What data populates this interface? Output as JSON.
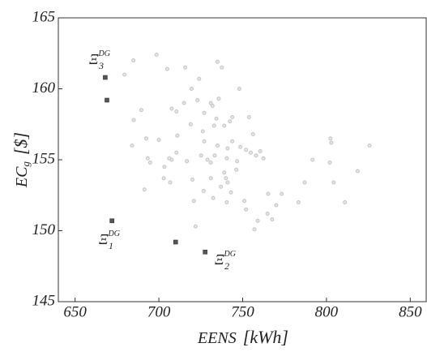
{
  "chart_data": {
    "type": "scatter",
    "xlabel": {
      "text": "EENS",
      "unit": "[kWh]"
    },
    "ylabel": {
      "text": "EC",
      "sub": "g",
      "unit": "[$]"
    },
    "xlim": [
      640,
      860
    ],
    "xticks": [
      650,
      700,
      750,
      800,
      850
    ],
    "ylim": [
      145,
      165
    ],
    "yticks": [
      145,
      150,
      155,
      160,
      165
    ],
    "series": [
      {
        "color": "#c4c4c4",
        "marker": "circle",
        "x": [
          684.8,
          679.5,
          698.6,
          705,
          715.7,
          724,
          735,
          737.6,
          748,
          719.5,
          685,
          689.5,
          707.6,
          710.5,
          715,
          723,
          731,
          732,
          735.7,
          727.1,
          734.3,
          742.4,
          733,
          739,
          743.8,
          753.8,
          756.2,
          684,
          692.4,
          700,
          711,
          719,
          727.1,
          735,
          743.8,
          748.6,
          752,
          754.8,
          760.5,
          762.4,
          710.5,
          716.7,
          725.2,
          731,
          740.5,
          746.2,
          693.3,
          694.8,
          703.3,
          707.6,
          706.2,
          739,
          740,
          741,
          737,
          731,
          720,
          726.7,
          743,
          740.5,
          732.4,
          720.9,
          751,
          765.2,
          773.3,
          770,
          764.8,
          767.6,
          759,
          757,
          783.3,
          787,
          791.7,
          802.4,
          802.9,
          802,
          804.3,
          811,
          818.6,
          825.7,
          721.9,
          691.4,
          746.7,
          758,
          733.3,
          726.2,
          729,
          741,
          702.9,
          706.7,
          752
        ],
        "values": [
          162,
          161,
          162.4,
          161.4,
          161.5,
          160.7,
          161.9,
          161.5,
          160,
          160,
          157.8,
          158.5,
          158.6,
          158.4,
          159,
          159.2,
          159,
          158.8,
          159.3,
          158.3,
          157.9,
          157.7,
          157.4,
          157.4,
          158,
          158,
          156.8,
          156,
          156.5,
          156.4,
          156.7,
          157.5,
          156.3,
          156,
          156.3,
          155.9,
          155.7,
          155.5,
          155.6,
          155.1,
          155.5,
          154.9,
          155.3,
          154.8,
          155.1,
          154.3,
          155.1,
          154.8,
          154.5,
          155,
          155.1,
          154.1,
          153.7,
          153.4,
          153.1,
          153.7,
          153.6,
          152.8,
          152.7,
          152,
          152.3,
          152.1,
          152.1,
          152.6,
          152.6,
          151.8,
          151.2,
          150.8,
          150.7,
          150.1,
          152,
          153.4,
          155,
          156.5,
          156.2,
          154.8,
          153.4,
          152,
          154.2,
          156,
          150.3,
          152.9,
          154.9,
          155.3,
          155.3,
          157,
          155,
          155.8,
          153.7,
          153.4,
          151.5
        ]
      },
      {
        "color": "#555555",
        "marker": "square",
        "x": [
          668,
          669,
          672,
          710,
          727.6
        ],
        "values": [
          160.8,
          159.2,
          150.7,
          149.2,
          148.5
        ]
      }
    ],
    "annotations": [
      {
        "base": "Ξ",
        "sub": "3",
        "sup": "DG"
      },
      {
        "base": "Ξ",
        "sub": "1",
        "sup": "DG"
      },
      {
        "base": "Ξ",
        "sub": "2",
        "sup": "DG"
      }
    ]
  }
}
